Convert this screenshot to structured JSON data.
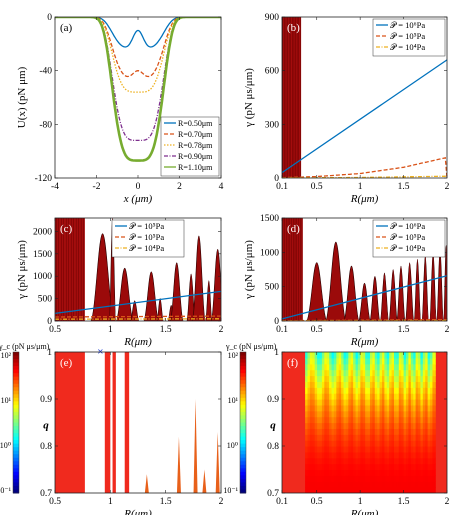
{
  "chart_data": [
    {
      "panel": "(a)",
      "type": "line",
      "xlabel": "x (μm)",
      "ylabel": "U(x) (pN μm)",
      "xlim": [
        -4,
        4
      ],
      "ylim": [
        -120,
        0
      ],
      "xticks": [
        "-4",
        "-2",
        "0",
        "2",
        "4"
      ],
      "yticks": [
        "0",
        "-40",
        "-80",
        "-120"
      ],
      "legend_position": "bottom-right",
      "series": [
        {
          "name": "R=0.50μm",
          "color": "#0072BD",
          "depth": 24,
          "center_bump": 14
        },
        {
          "name": "R=0.70μm",
          "color": "#D95319",
          "depth": 46,
          "center_bump": 6
        },
        {
          "name": "R=0.78μm",
          "color": "#EDB120",
          "depth": 56,
          "center_bump": 0
        },
        {
          "name": "R=0.90μm",
          "color": "#7E2F8E",
          "depth": 92,
          "center_bump": 0
        },
        {
          "name": "R=1.10μm",
          "color": "#77AC30",
          "depth": 107,
          "center_bump": 0
        }
      ]
    },
    {
      "panel": "(b)",
      "type": "line",
      "xlabel": "R(μm)",
      "ylabel": "γ (pN μs/μm)",
      "xlim": [
        0.1,
        2
      ],
      "ylim": [
        0,
        900
      ],
      "xticks": [
        "0.1",
        "0.5",
        "1",
        "1.5",
        "2"
      ],
      "yticks": [
        "0",
        "300",
        "600",
        "900"
      ],
      "legend_position": "top-right",
      "series": [
        {
          "name": "𝒫 = 10⁶Pa",
          "color": "#0072BD",
          "x": [
            0.1,
            2.0
          ],
          "y": [
            30,
            660
          ]
        },
        {
          "name": "𝒫 = 10⁵Pa",
          "color": "#D95319",
          "x": [
            0.1,
            0.5,
            1.0,
            1.5,
            2.0
          ],
          "y": [
            2,
            8,
            25,
            60,
            115
          ]
        },
        {
          "name": "𝒫 = 10⁴Pa",
          "color": "#EDB120",
          "x": [
            0.1,
            1.0,
            2.0
          ],
          "y": [
            0,
            3,
            10
          ]
        }
      ],
      "red_region_x": [
        0.1,
        0.32
      ]
    },
    {
      "panel": "(c)",
      "type": "line",
      "xlabel": "R(μm)",
      "ylabel": "γ (pN μs/μm)",
      "xlim": [
        0.5,
        2
      ],
      "ylim": [
        0,
        2300
      ],
      "xticks": [
        "0.5",
        "1",
        "1.5",
        "2"
      ],
      "yticks": [
        "0",
        "500",
        "1000",
        "1500",
        "2000"
      ],
      "legend_position": "top-center",
      "series": [
        {
          "name": "𝒫 = 10⁵Pa",
          "color": "#0072BD",
          "x": [
            0.5,
            2.0
          ],
          "y": [
            170,
            660
          ]
        },
        {
          "name": "𝒫 = 10⁵Pa",
          "color": "#D95319",
          "x": [
            0.5,
            2.0
          ],
          "y": [
            90,
            110
          ]
        },
        {
          "name": "𝒫 = 10⁴Pa",
          "color": "#EDB120",
          "x": [
            0.5,
            2.0
          ],
          "y": [
            40,
            50
          ]
        }
      ],
      "red_region_x": [
        0.5,
        0.77
      ],
      "red_peaks": [
        [
          0.93,
          0.11,
          1950
        ],
        [
          1.02,
          0.03,
          2300
        ],
        [
          1.13,
          0.08,
          1180
        ],
        [
          1.22,
          0.04,
          450
        ],
        [
          1.37,
          0.07,
          1100
        ],
        [
          1.45,
          0.03,
          500
        ],
        [
          1.55,
          0.03,
          350
        ],
        [
          1.6,
          0.06,
          1300
        ],
        [
          1.73,
          0.04,
          1050
        ],
        [
          1.8,
          0.06,
          1900
        ],
        [
          1.89,
          0.03,
          900
        ],
        [
          1.97,
          0.06,
          1600
        ]
      ]
    },
    {
      "panel": "(d)",
      "type": "line",
      "xlabel": "R(μm)",
      "ylabel": "γ (pN μs/μm)",
      "xlim": [
        0.1,
        2
      ],
      "ylim": [
        0,
        1500
      ],
      "xticks": [
        "0.1",
        "0.5",
        "1",
        "1.5",
        "2"
      ],
      "yticks": [
        "0",
        "500",
        "1000",
        "1500"
      ],
      "legend_position": "top-right",
      "series": [
        {
          "name": "𝒫 = 10⁶Pa",
          "color": "#0072BD",
          "x": [
            0.1,
            2.0
          ],
          "y": [
            30,
            660
          ]
        },
        {
          "name": "𝒫 = 10⁵Pa",
          "color": "#D95319",
          "x": [
            0.1,
            2.0
          ],
          "y": [
            5,
            20
          ]
        },
        {
          "name": "𝒫 = 10⁴Pa",
          "color": "#EDB120",
          "x": [
            0.1,
            2.0
          ],
          "y": [
            0,
            5
          ]
        }
      ],
      "red_region_x": [
        0.1,
        0.34
      ],
      "red_peaks": [
        [
          0.5,
          0.12,
          850
        ],
        [
          0.72,
          0.12,
          1150
        ],
        [
          0.9,
          0.09,
          800
        ],
        [
          1.05,
          0.07,
          550
        ],
        [
          1.17,
          0.06,
          650
        ],
        [
          1.28,
          0.05,
          700
        ],
        [
          1.38,
          0.05,
          750
        ],
        [
          1.47,
          0.05,
          800
        ],
        [
          1.57,
          0.05,
          850
        ],
        [
          1.66,
          0.04,
          900
        ],
        [
          1.75,
          0.04,
          950
        ],
        [
          1.84,
          0.04,
          1000
        ],
        [
          1.92,
          0.04,
          1050
        ],
        [
          1.99,
          0.03,
          1100
        ]
      ]
    },
    {
      "panel": "(e)",
      "type": "heatmap",
      "xlabel": "R(μm)",
      "ylabel": "q",
      "xlim": [
        0.5,
        2
      ],
      "ylim": [
        0.7,
        1
      ],
      "xticks": [
        "0.5",
        "1",
        "1.5",
        "2"
      ],
      "yticks": [
        "0.7",
        "0.8",
        "0.9",
        "1"
      ],
      "colorbar_label": "γ_c (pN μs/μm)",
      "colorbar_ticks": [
        "10²",
        "10¹",
        "10⁰",
        "10⁻¹"
      ],
      "marker_x": 0.91
    },
    {
      "panel": "(f)",
      "type": "heatmap",
      "xlabel": "R(μm)",
      "ylabel": "q",
      "xlim": [
        0.1,
        2
      ],
      "ylim": [
        0.7,
        1
      ],
      "xticks": [
        "0.1",
        "0.5",
        "1",
        "1.5",
        "2"
      ],
      "yticks": [
        "0.7",
        "0.8",
        "0.9",
        "1"
      ],
      "colorbar_label": "γ_c (pN μs/μm)",
      "colorbar_ticks": [
        "10²",
        "10¹",
        "10⁰",
        "10⁻¹"
      ]
    }
  ]
}
